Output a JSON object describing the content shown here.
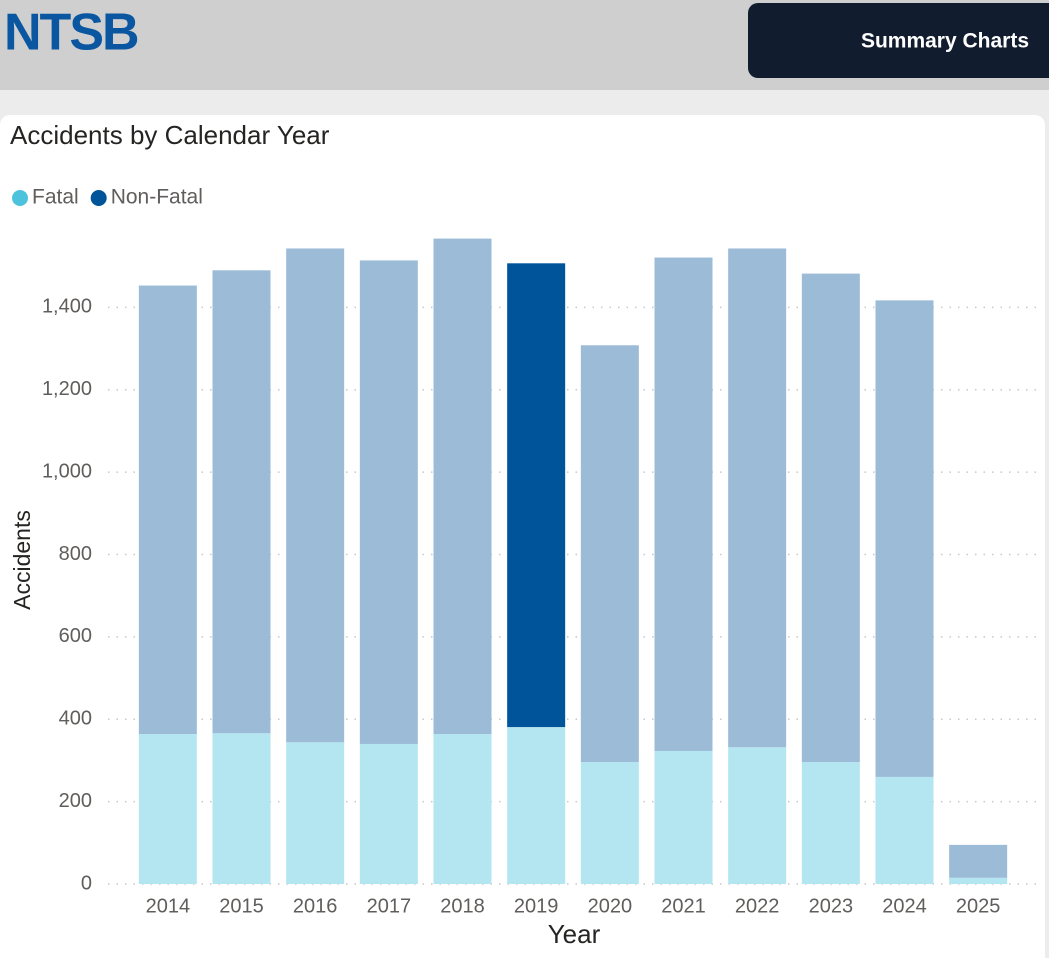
{
  "header": {
    "logo": "NTSB",
    "button": "Summary Charts"
  },
  "chart_data": {
    "type": "stacked_bar",
    "title": "Accidents by Calendar Year",
    "x_label": "Year",
    "y_label": "Accidents",
    "categories": [
      "2014",
      "2015",
      "2016",
      "2017",
      "2018",
      "2019",
      "2020",
      "2021",
      "2022",
      "2023",
      "2024",
      "2025"
    ],
    "series": [
      {
        "name": "Fatal",
        "color": "#4cc2dc",
        "bar_colors": [
          "#b3e6f1",
          "#b3e6f1",
          "#b3e6f1",
          "#b3e6f1",
          "#b3e6f1",
          "#b3e6f1",
          "#b3e6f1",
          "#b3e6f1",
          "#b3e6f1",
          "#b3e6f1",
          "#b3e6f1",
          "#b3e6f1"
        ],
        "values": [
          364,
          366,
          344,
          340,
          364,
          381,
          296,
          323,
          332,
          296,
          260,
          15
        ]
      },
      {
        "name": "Non-Fatal",
        "color": "#005499",
        "bar_colors": [
          "#9bbbd7",
          "#9bbbd7",
          "#9bbbd7",
          "#9bbbd7",
          "#9bbbd7",
          "#005499",
          "#9bbbd7",
          "#9bbbd7",
          "#9bbbd7",
          "#9bbbd7",
          "#9bbbd7",
          "#9bbbd7"
        ],
        "values": [
          1089,
          1124,
          1199,
          1174,
          1203,
          1126,
          1012,
          1198,
          1211,
          1186,
          1157,
          80
        ]
      }
    ],
    "ylim": [
      0,
      1600
    ],
    "yticks": [
      0,
      200,
      400,
      600,
      800,
      1000,
      1200,
      {
        "value": 1000,
        "label": "1,000"
      },
      {
        "value": 1200,
        "label": "1,200"
      },
      {
        "value": 1400,
        "label": "1,400"
      }
    ],
    "grid": true,
    "legend": "top-left"
  }
}
